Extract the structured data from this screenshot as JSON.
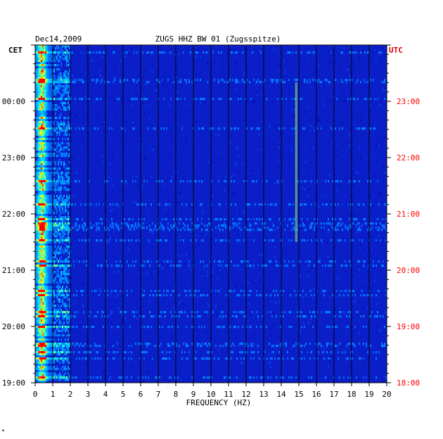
{
  "chart_data": {
    "type": "heatmap",
    "title": "ZUGS HHZ BW 01 (Zugsspitze)",
    "date": "Dec14,2009",
    "left_timezone": "CET",
    "right_timezone": "UTC",
    "xlabel": "FREQUENCY (HZ)",
    "xlim": [
      0,
      20
    ],
    "x_ticks": [
      "0",
      "1",
      "2",
      "3",
      "4",
      "5",
      "6",
      "7",
      "8",
      "9",
      "10",
      "11",
      "12",
      "13",
      "14",
      "15",
      "16",
      "17",
      "18",
      "19",
      "20"
    ],
    "left_time_ticks": [
      "00:00",
      "23:00",
      "22:00",
      "21:00",
      "20:00",
      "19:00"
    ],
    "right_time_ticks": [
      "23:00",
      "22:00",
      "21:00",
      "20:00",
      "19:00",
      "18:00"
    ],
    "time_range_utc": [
      "18:00",
      "24:00"
    ],
    "features": [
      {
        "frequency_hz": 0.3,
        "description": "persistent low-frequency energy band",
        "intensity": "high"
      },
      {
        "frequency_hz": 14.85,
        "start_utc": "20:30",
        "end_utc": "23:20",
        "intensity": "high"
      }
    ],
    "colors": {
      "background": "#0b1fc8",
      "low": "#0000a0",
      "mid": "#00d8ff",
      "high": "#ffff00",
      "peak": "#ff0000",
      "grid": "#000000",
      "utc_text": "#ff0000"
    }
  },
  "footnote": "*"
}
